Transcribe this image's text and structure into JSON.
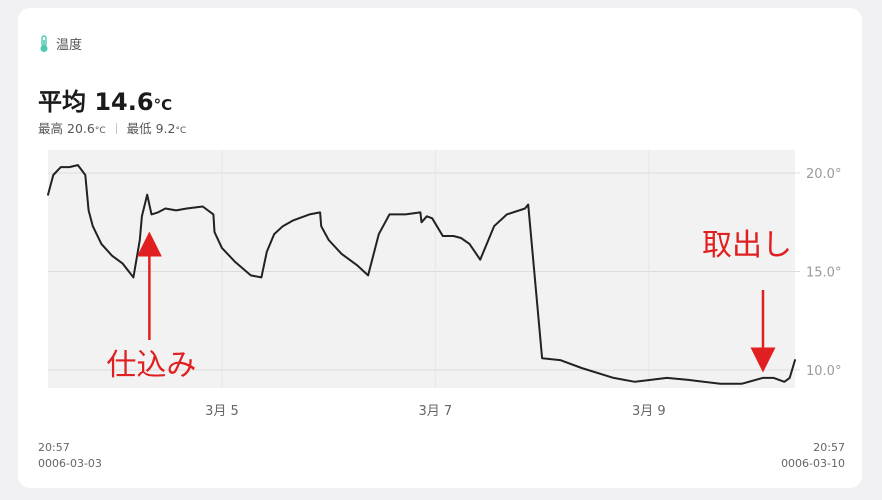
{
  "header": {
    "label": "温度",
    "icon": "thermometer-icon",
    "icon_color": "#4ec9b0"
  },
  "summary": {
    "avg_prefix": "平均",
    "avg_value": "14.6",
    "avg_unit": "°C",
    "max_label": "最高",
    "max_value": "20.6",
    "max_unit": "°C",
    "min_label": "最低",
    "min_value": "9.2",
    "min_unit": "°C"
  },
  "footer": {
    "start_time": "20:57",
    "start_date": "0006-03-03",
    "end_time": "20:57",
    "end_date": "0006-03-10"
  },
  "chart_data": {
    "type": "line",
    "title": "温度",
    "xlabel": "",
    "ylabel": "",
    "x_unit": "days since 03-03 20:57",
    "xlim": [
      0,
      7
    ],
    "ylim": [
      9.0,
      20.3
    ],
    "y_ticks": [
      20.0,
      15.0,
      10.0
    ],
    "y_tick_labels": [
      "20.0°",
      "15.0°",
      "10.0°"
    ],
    "x_ticks": [
      1.63,
      3.63,
      5.63
    ],
    "x_tick_labels": [
      "3月 5",
      "3月 7",
      "3月 9"
    ],
    "line_color": "#222222",
    "fill_color": "#f2f2f2",
    "grid": true,
    "series": [
      {
        "name": "温度",
        "x": [
          0.0,
          0.05,
          0.12,
          0.2,
          0.28,
          0.35,
          0.38,
          0.42,
          0.5,
          0.6,
          0.7,
          0.8,
          0.86,
          0.88,
          0.93,
          0.97,
          1.03,
          1.1,
          1.2,
          1.3,
          1.45,
          1.55,
          1.56,
          1.63,
          1.75,
          1.9,
          2.0,
          2.05,
          2.12,
          2.2,
          2.3,
          2.45,
          2.55,
          2.56,
          2.63,
          2.75,
          2.9,
          2.96,
          3.0,
          3.1,
          3.2,
          3.35,
          3.49,
          3.5,
          3.55,
          3.6,
          3.7,
          3.8,
          3.87,
          3.95,
          4.05,
          4.18,
          4.3,
          4.47,
          4.5,
          4.63,
          4.8,
          5.0,
          5.3,
          5.5,
          5.8,
          6.0,
          6.3,
          6.5,
          6.7,
          6.8,
          6.9,
          6.95,
          7.0
        ],
        "y": [
          18.9,
          19.9,
          20.3,
          20.3,
          20.4,
          19.9,
          18.1,
          17.3,
          16.4,
          15.8,
          15.4,
          14.7,
          16.6,
          17.8,
          18.9,
          17.9,
          18.0,
          18.2,
          18.1,
          18.2,
          18.3,
          17.9,
          17.0,
          16.2,
          15.5,
          14.8,
          14.7,
          16.0,
          16.9,
          17.3,
          17.6,
          17.9,
          18.0,
          17.3,
          16.6,
          15.9,
          15.3,
          15.0,
          14.8,
          16.9,
          17.9,
          17.9,
          18.0,
          17.5,
          17.8,
          17.7,
          16.8,
          16.8,
          16.7,
          16.4,
          15.6,
          17.3,
          17.9,
          18.2,
          18.4,
          10.6,
          10.5,
          10.1,
          9.6,
          9.4,
          9.6,
          9.5,
          9.3,
          9.3,
          9.6,
          9.6,
          9.4,
          9.6,
          10.5
        ]
      }
    ],
    "annotations": [
      {
        "text": "仕込み",
        "x": 0.95,
        "y": 16.8,
        "arrow": "up",
        "color": "#e02020"
      },
      {
        "text": "取出し",
        "x": 6.7,
        "y": 10.1,
        "arrow": "down",
        "color": "#e02020"
      }
    ]
  }
}
